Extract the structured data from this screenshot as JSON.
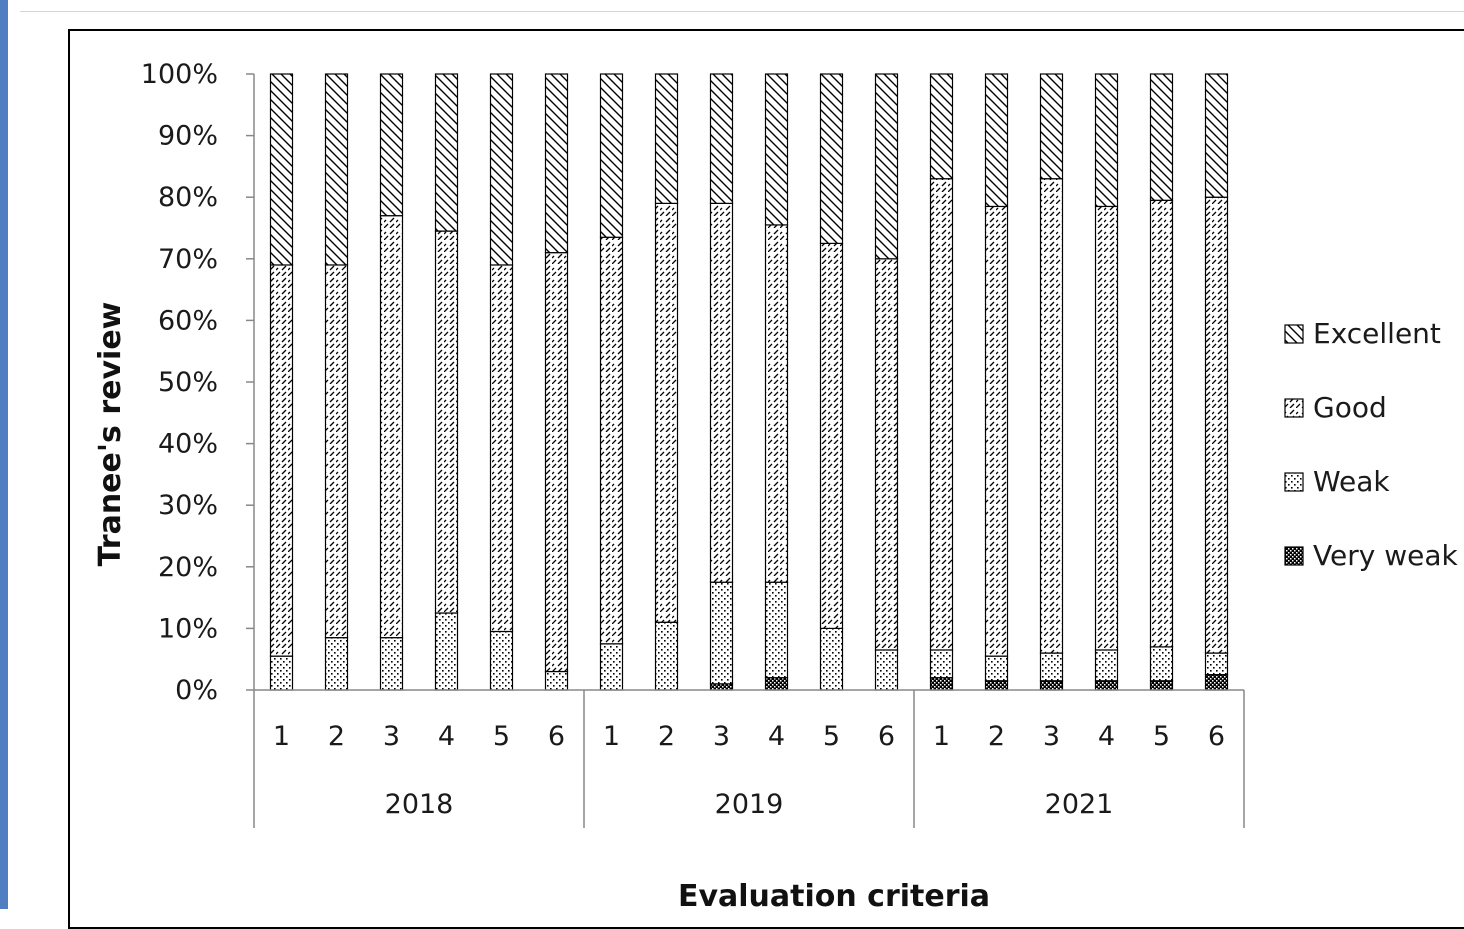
{
  "chart_data": {
    "type": "bar",
    "stacked": true,
    "percent_stacked": true,
    "title": "",
    "xlabel": "Evaluation criteria",
    "ylabel": "Tranee's review",
    "ylim": [
      0,
      100
    ],
    "yticks": [
      "0%",
      "10%",
      "20%",
      "30%",
      "40%",
      "50%",
      "60%",
      "70%",
      "80%",
      "90%",
      "100%"
    ],
    "groups": [
      {
        "label": "2018",
        "categories": [
          "1",
          "2",
          "3",
          "4",
          "5",
          "6"
        ]
      },
      {
        "label": "2019",
        "categories": [
          "1",
          "2",
          "3",
          "4",
          "5",
          "6"
        ]
      },
      {
        "label": "2021",
        "categories": [
          "1",
          "2",
          "3",
          "4",
          "5",
          "6"
        ]
      }
    ],
    "series": [
      {
        "name": "Very weak",
        "pattern": "checker-dark",
        "values": [
          0,
          0,
          0,
          0,
          0,
          0,
          0,
          0,
          1,
          2,
          0,
          0,
          2,
          1.5,
          1.5,
          1.5,
          1.5,
          2.5
        ]
      },
      {
        "name": "Weak",
        "pattern": "dots",
        "values": [
          5.5,
          8.5,
          8.5,
          12.5,
          9.5,
          3,
          7.5,
          11,
          16.5,
          15.5,
          10,
          6.5,
          4.5,
          4,
          4.5,
          5,
          5.5,
          3.5
        ]
      },
      {
        "name": "Good",
        "pattern": "dashed-diagonal",
        "values": [
          63.5,
          60.5,
          68.5,
          62,
          59.5,
          68,
          66,
          68,
          61.5,
          58,
          62.5,
          63.5,
          76.5,
          73,
          77,
          72,
          72.5,
          74
        ]
      },
      {
        "name": "Excellent",
        "pattern": "diagonal-lines",
        "values": [
          31,
          31,
          23,
          25.5,
          31,
          29,
          26.5,
          21,
          21,
          24.5,
          27.5,
          30,
          17,
          21.5,
          17,
          21.5,
          20.5,
          20
        ]
      }
    ],
    "legend_position": "right",
    "legend_order": [
      "Excellent",
      "Good",
      "Weak",
      "Very weak"
    ],
    "grid": false
  }
}
